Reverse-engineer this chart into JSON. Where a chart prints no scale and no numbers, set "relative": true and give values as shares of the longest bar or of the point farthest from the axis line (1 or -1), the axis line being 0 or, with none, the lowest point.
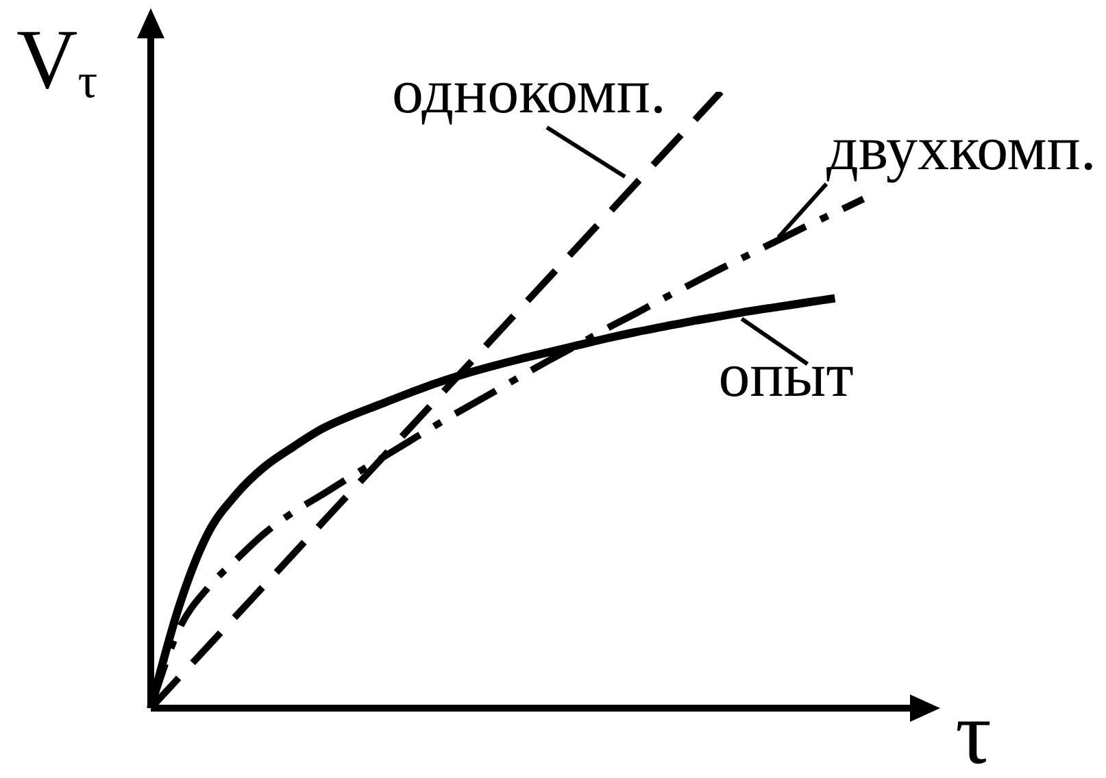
{
  "chart_data": {
    "type": "line",
    "xlabel": "τ",
    "ylabel": "V$_{τ}$",
    "relative": true,
    "marker": "none",
    "categories": [
      null,
      null,
      null,
      null,
      null,
      null,
      null,
      null,
      null,
      null,
      null,
      null,
      null,
      null,
      null,
      null,
      null,
      null,
      null,
      null,
      null,
      null,
      null,
      null,
      null,
      null
    ],
    "series": [
      {
        "name": "однокомп.",
        "color": "#000000",
        "line_style": "dashed",
        "values": [
          0,
          0.05,
          0.1,
          0.15,
          0.2,
          0.25,
          0.3,
          0.35,
          0.4,
          0.45,
          0.5,
          0.55,
          0.6,
          0.65,
          0.7,
          0.75,
          0.8,
          0.85,
          0.9,
          0.95,
          1,
          null,
          null,
          null,
          null,
          null
        ]
      },
      {
        "name": "двухкомп.",
        "color": "#000000",
        "line_style": "dashdot",
        "values": [
          0,
          0.129,
          0.195,
          0.241,
          0.284,
          0.318,
          0.346,
          0.375,
          0.403,
          0.431,
          0.459,
          0.486,
          0.512,
          0.539,
          0.565,
          0.59,
          0.616,
          0.64,
          0.665,
          0.689,
          0.713,
          0.736,
          0.759,
          0.782,
          0.804,
          0.826
        ]
      },
      {
        "name": "опыт",
        "color": "#000000",
        "line_style": "solid",
        "values": [
          0,
          0.166,
          0.283,
          0.347,
          0.392,
          0.424,
          0.453,
          0.474,
          0.492,
          0.51,
          0.527,
          0.542,
          0.555,
          0.567,
          0.578,
          0.589,
          0.6,
          0.61,
          0.619,
          0.628,
          0.636,
          0.644,
          0.651,
          0.658,
          0.665,
          null
        ]
      }
    ]
  }
}
